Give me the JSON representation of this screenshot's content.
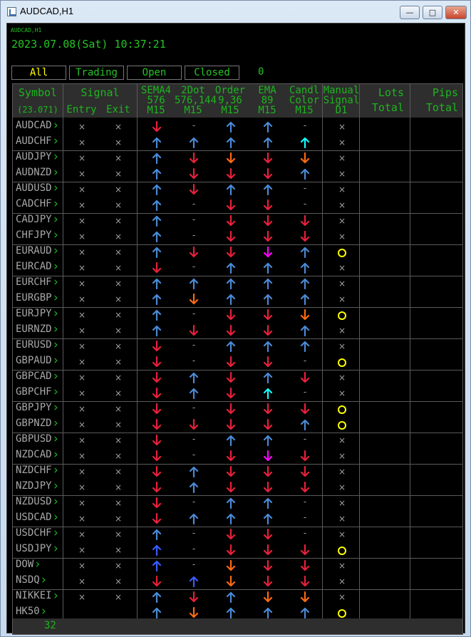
{
  "window": {
    "title": "AUDCAD,H1",
    "minimize_label": "—",
    "maximize_label": "□",
    "close_label": "✕"
  },
  "panel": {
    "small_title": "AUDCAD,H1",
    "datetime": "2023.07.08(Sat) 10:37:21",
    "filters": [
      "All",
      "Trading",
      "Open",
      "Closed"
    ],
    "active_filter": "All",
    "count": "0",
    "footer_count": "32"
  },
  "headers": {
    "symbol": "Symbol",
    "symbol_sub": "(23.071)",
    "signal": "Signal",
    "entry": "Entry",
    "exit": "Exit",
    "sema": [
      "SEMA4",
      "576",
      "M15"
    ],
    "dot": [
      "2Dot",
      "576,144",
      "M15"
    ],
    "order": [
      "Order",
      "9,36",
      "M15"
    ],
    "ema": [
      "EMA",
      "89",
      "M15"
    ],
    "candle": [
      "Candl",
      "Color",
      "M15"
    ],
    "manual": [
      "Manual",
      "Signal",
      "D1"
    ],
    "lots": [
      "Lots",
      "Total"
    ],
    "pips": [
      "Pips",
      "Total"
    ]
  },
  "colors": {
    "up": "#4a8ad6",
    "down": "#e8203a",
    "orange": "#ff6a10",
    "cyan": "#10ffff",
    "magenta": "#ff00ff",
    "circle": "#ffff00"
  },
  "rows": [
    {
      "symbol": "AUDCAD",
      "sema": "down",
      "dot": "-",
      "order": "up",
      "ema": "up",
      "candle": "-",
      "manual": "x"
    },
    {
      "symbol": "AUDCHF",
      "sema": "up",
      "dot": "up",
      "order": "up",
      "ema": "up",
      "candle": "cyan",
      "manual": "x"
    },
    {
      "symbol": "AUDJPY",
      "sema": "up",
      "dot": "down",
      "order": "orange",
      "ema": "down",
      "candle": "orange",
      "manual": "x"
    },
    {
      "symbol": "AUDNZD",
      "sema": "up",
      "dot": "down",
      "order": "down",
      "ema": "down",
      "candle": "up",
      "manual": "x"
    },
    {
      "symbol": "AUDUSD",
      "sema": "up",
      "dot": "down",
      "order": "up",
      "ema": "up",
      "candle": "-",
      "manual": "x"
    },
    {
      "symbol": "CADCHF",
      "sema": "up",
      "dot": "-",
      "order": "down",
      "ema": "down",
      "candle": "-",
      "manual": "x"
    },
    {
      "symbol": "CADJPY",
      "sema": "up",
      "dot": "-",
      "order": "down",
      "ema": "down",
      "candle": "down",
      "manual": "x"
    },
    {
      "symbol": "CHFJPY",
      "sema": "up",
      "dot": "-",
      "order": "down",
      "ema": "down",
      "candle": "down",
      "manual": "x"
    },
    {
      "symbol": "EURAUD",
      "sema": "up",
      "dot": "down",
      "order": "down",
      "ema": "magenta",
      "candle": "up",
      "manual": "o"
    },
    {
      "symbol": "EURCAD",
      "sema": "down",
      "dot": "-",
      "order": "up",
      "ema": "up",
      "candle": "up",
      "manual": "x"
    },
    {
      "symbol": "EURCHF",
      "sema": "up",
      "dot": "up",
      "order": "up",
      "ema": "up",
      "candle": "up",
      "manual": "x"
    },
    {
      "symbol": "EURGBP",
      "sema": "up",
      "dot": "orange",
      "order": "up",
      "ema": "up",
      "candle": "up",
      "manual": "x"
    },
    {
      "symbol": "EURJPY",
      "sema": "up",
      "dot": "-",
      "order": "down",
      "ema": "down",
      "candle": "orange",
      "manual": "o"
    },
    {
      "symbol": "EURNZD",
      "sema": "up",
      "dot": "down",
      "order": "down",
      "ema": "down",
      "candle": "up",
      "manual": "x"
    },
    {
      "symbol": "EURUSD",
      "sema": "down",
      "dot": "-",
      "order": "up",
      "ema": "up",
      "candle": "up",
      "manual": "x"
    },
    {
      "symbol": "GBPAUD",
      "sema": "down",
      "dot": "-",
      "order": "down",
      "ema": "down",
      "candle": "-",
      "manual": "o"
    },
    {
      "symbol": "GBPCAD",
      "sema": "down",
      "dot": "up",
      "order": "down",
      "ema": "up",
      "candle": "down",
      "manual": "x"
    },
    {
      "symbol": "GBPCHF",
      "sema": "down",
      "dot": "up",
      "order": "down",
      "ema": "cyan",
      "candle": "-",
      "manual": "x"
    },
    {
      "symbol": "GBPJPY",
      "sema": "down",
      "dot": "-",
      "order": "down",
      "ema": "down",
      "candle": "down",
      "manual": "o"
    },
    {
      "symbol": "GBPNZD",
      "sema": "down",
      "dot": "down",
      "order": "down",
      "ema": "down",
      "candle": "up",
      "manual": "o"
    },
    {
      "symbol": "GBPUSD",
      "sema": "down",
      "dot": "-",
      "order": "up",
      "ema": "up",
      "candle": "-",
      "manual": "x"
    },
    {
      "symbol": "NZDCAD",
      "sema": "down",
      "dot": "-",
      "order": "down",
      "ema": "magenta",
      "candle": "down",
      "manual": "x"
    },
    {
      "symbol": "NZDCHF",
      "sema": "down",
      "dot": "up",
      "order": "down",
      "ema": "down",
      "candle": "down",
      "manual": "x"
    },
    {
      "symbol": "NZDJPY",
      "sema": "down",
      "dot": "up",
      "order": "down",
      "ema": "down",
      "candle": "down",
      "manual": "x"
    },
    {
      "symbol": "NZDUSD",
      "sema": "down",
      "dot": "-",
      "order": "up",
      "ema": "up",
      "candle": "-",
      "manual": "x"
    },
    {
      "symbol": "USDCAD",
      "sema": "down",
      "dot": "up",
      "order": "up",
      "ema": "up",
      "candle": "-",
      "manual": "x"
    },
    {
      "symbol": "USDCHF",
      "sema": "up",
      "dot": "-",
      "order": "down",
      "ema": "down",
      "candle": "-",
      "manual": "x"
    },
    {
      "symbol": "USDJPY",
      "sema": "blue",
      "dot": "-",
      "order": "down",
      "ema": "down",
      "candle": "down",
      "manual": "o"
    },
    {
      "symbol": "DOW",
      "sema": "blue",
      "dot": "-",
      "order": "orange",
      "ema": "down",
      "candle": "down",
      "manual": "x"
    },
    {
      "symbol": "NSDQ",
      "sema": "down",
      "dot": "blue",
      "order": "orange",
      "ema": "down",
      "candle": "down",
      "manual": "x"
    },
    {
      "symbol": "NIKKEI",
      "sema": "up",
      "dot": "down",
      "order": "up",
      "ema": "orange",
      "candle": "orange",
      "manual": "x"
    },
    {
      "symbol": "HK50",
      "sema": "up",
      "dot": "orange",
      "order": "up",
      "ema": "up",
      "candle": "up",
      "manual": "o"
    }
  ]
}
